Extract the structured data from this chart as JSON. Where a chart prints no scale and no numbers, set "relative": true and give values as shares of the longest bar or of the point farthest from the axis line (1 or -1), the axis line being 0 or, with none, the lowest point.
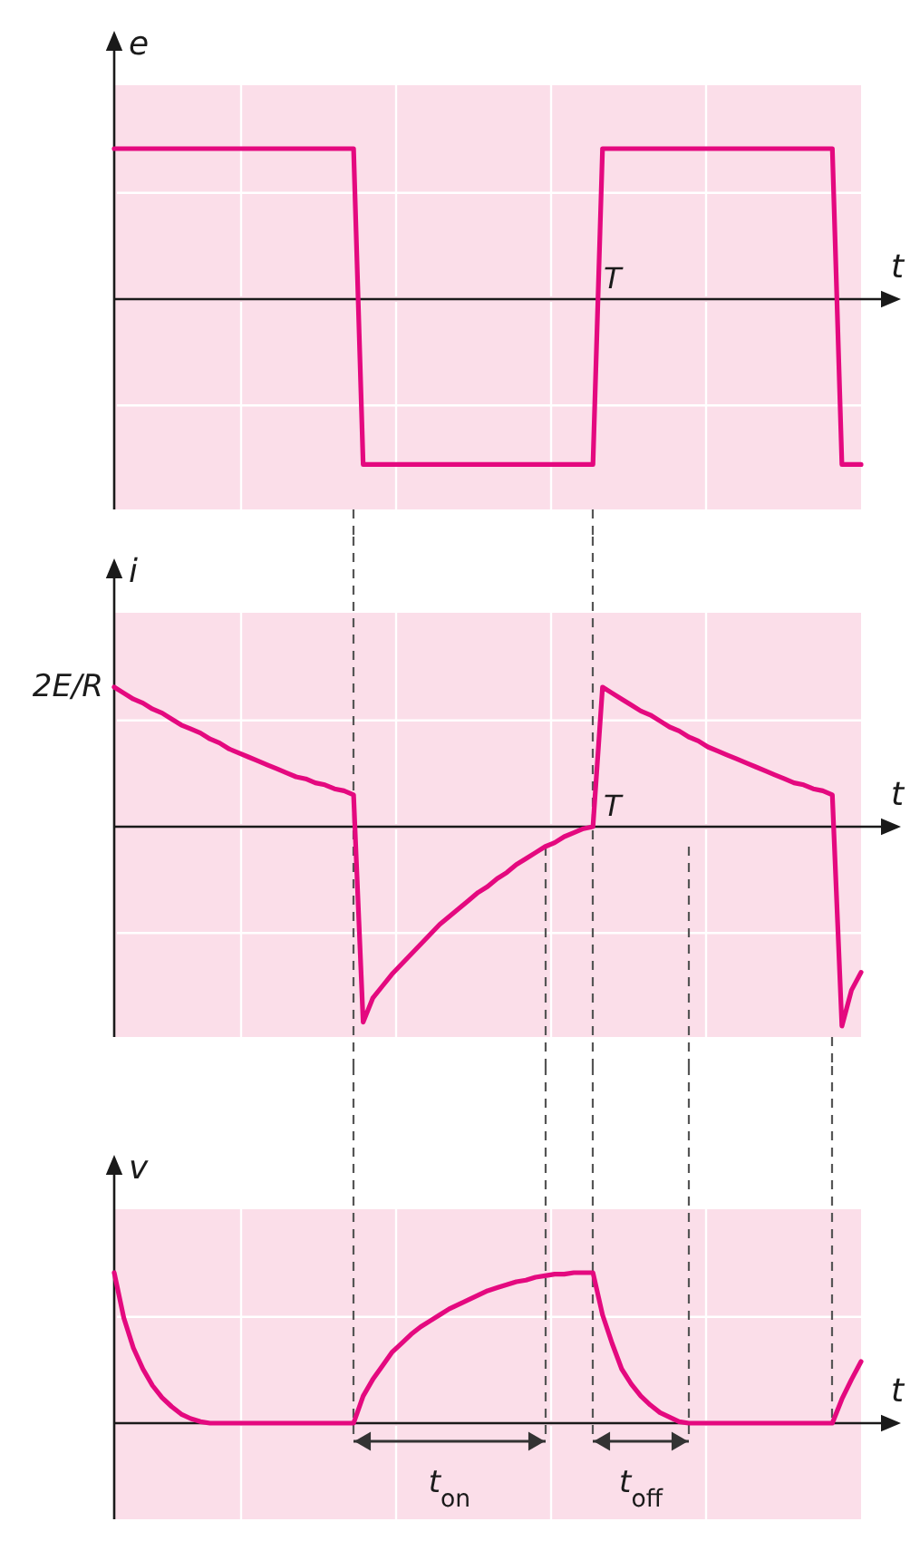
{
  "chart_data": [
    {
      "type": "line",
      "relative": true,
      "ylabel": "e",
      "xlabel": "t",
      "grid": true,
      "categories": [
        null,
        null,
        null,
        null,
        null,
        null,
        null,
        null,
        null,
        null,
        null,
        null,
        null,
        null,
        null,
        null,
        null,
        null,
        null,
        null,
        null,
        null,
        null,
        null,
        null,
        null,
        null,
        null,
        null,
        null,
        null,
        null,
        null,
        null,
        null,
        null,
        null,
        null,
        null,
        null,
        null,
        null,
        null,
        null,
        null,
        null,
        null,
        null,
        null,
        null,
        null,
        null,
        null,
        null,
        null,
        null,
        null,
        null,
        null,
        null,
        null,
        null,
        null,
        null,
        null,
        null,
        null,
        null,
        null,
        null,
        null,
        null,
        null,
        null,
        null,
        null,
        null,
        null,
        null
      ],
      "series": [
        {
          "color": "#e4097f",
          "values": [
            0.91,
            0.91,
            0.91,
            0.91,
            0.91,
            0.91,
            0.91,
            0.91,
            0.91,
            0.91,
            0.91,
            0.91,
            0.91,
            0.91,
            0.91,
            0.91,
            0.91,
            0.91,
            0.91,
            0.91,
            0.91,
            0.91,
            0.91,
            0.91,
            0.91,
            0.91,
            -1,
            -1,
            -1,
            -1,
            -1,
            -1,
            -1,
            -1,
            -1,
            -1,
            -1,
            -1,
            -1,
            -1,
            -1,
            -1,
            -1,
            -1,
            -1,
            -1,
            -1,
            -1,
            -1,
            -1,
            -1,
            0.91,
            0.91,
            0.91,
            0.91,
            0.91,
            0.91,
            0.91,
            0.91,
            0.91,
            0.91,
            0.91,
            0.91,
            0.91,
            0.91,
            0.91,
            0.91,
            0.91,
            0.91,
            0.91,
            0.91,
            0.91,
            0.91,
            0.91,
            0.91,
            0.91,
            -1,
            -1,
            -1
          ]
        }
      ],
      "annotations": [
        "T"
      ]
    },
    {
      "type": "line",
      "relative": true,
      "ylabel": "i",
      "xlabel": "t",
      "grid": true,
      "categories": [
        null,
        null,
        null,
        null,
        null,
        null,
        null,
        null,
        null,
        null,
        null,
        null,
        null,
        null,
        null,
        null,
        null,
        null,
        null,
        null,
        null,
        null,
        null,
        null,
        null,
        null,
        null,
        null,
        null,
        null,
        null,
        null,
        null,
        null,
        null,
        null,
        null,
        null,
        null,
        null,
        null,
        null,
        null,
        null,
        null,
        null,
        null,
        null,
        null,
        null,
        null,
        null,
        null,
        null,
        null,
        null,
        null,
        null,
        null,
        null,
        null,
        null,
        null,
        null,
        null,
        null,
        null,
        null,
        null,
        null,
        null,
        null,
        null,
        null,
        null,
        null,
        null,
        null,
        null
      ],
      "series": [
        {
          "color": "#e4097f",
          "values": [
            0.7,
            0.67,
            0.64,
            0.62,
            0.59,
            0.57,
            0.54,
            0.51,
            0.49,
            0.47,
            0.44,
            0.42,
            0.39,
            0.37,
            0.35,
            0.33,
            0.31,
            0.29,
            0.27,
            0.25,
            0.24,
            0.22,
            0.21,
            0.19,
            0.18,
            0.16,
            -0.98,
            -0.86,
            -0.8,
            -0.74,
            -0.69,
            -0.64,
            -0.59,
            -0.54,
            -0.49,
            -0.45,
            -0.41,
            -0.37,
            -0.33,
            -0.3,
            -0.26,
            -0.23,
            -0.19,
            -0.16,
            -0.13,
            -0.1,
            -0.08,
            -0.05,
            -0.03,
            -0.01,
            0,
            0.7,
            0.67,
            0.64,
            0.61,
            0.58,
            0.56,
            0.53,
            0.5,
            0.48,
            0.45,
            0.43,
            0.4,
            0.38,
            0.36,
            0.34,
            0.32,
            0.3,
            0.28,
            0.26,
            0.24,
            0.22,
            0.21,
            0.19,
            0.18,
            0.16,
            -1,
            -0.82,
            -0.73
          ]
        }
      ],
      "annotations": [
        "2E/R",
        "T"
      ]
    },
    {
      "type": "line",
      "relative": true,
      "ylabel": "v",
      "xlabel": "t",
      "grid": true,
      "categories": [
        null,
        null,
        null,
        null,
        null,
        null,
        null,
        null,
        null,
        null,
        null,
        null,
        null,
        null,
        null,
        null,
        null,
        null,
        null,
        null,
        null,
        null,
        null,
        null,
        null,
        null,
        null,
        null,
        null,
        null,
        null,
        null,
        null,
        null,
        null,
        null,
        null,
        null,
        null,
        null,
        null,
        null,
        null,
        null,
        null,
        null,
        null,
        null,
        null,
        null,
        null,
        null,
        null,
        null,
        null,
        null,
        null,
        null,
        null,
        null,
        null,
        null,
        null,
        null,
        null,
        null,
        null,
        null,
        null,
        null,
        null,
        null,
        null,
        null,
        null,
        null,
        null,
        null,
        null
      ],
      "series": [
        {
          "color": "#e4097f",
          "values": [
            1,
            0.7,
            0.5,
            0.36,
            0.25,
            0.17,
            0.11,
            0.06,
            0.03,
            0.01,
            0,
            0,
            0,
            0,
            0,
            0,
            0,
            0,
            0,
            0,
            0,
            0,
            0,
            0,
            0,
            0,
            0.18,
            0.29,
            0.38,
            0.47,
            0.53,
            0.59,
            0.64,
            0.68,
            0.72,
            0.76,
            0.79,
            0.82,
            0.85,
            0.88,
            0.9,
            0.92,
            0.94,
            0.95,
            0.97,
            0.98,
            0.99,
            0.99,
            1,
            1,
            1,
            0.72,
            0.53,
            0.36,
            0.26,
            0.18,
            0.12,
            0.07,
            0.04,
            0.01,
            0,
            0,
            0,
            0,
            0,
            0,
            0,
            0,
            0,
            0,
            0,
            0,
            0,
            0,
            0,
            0,
            0.16,
            0.29,
            0.41
          ]
        }
      ],
      "annotations": [
        "t$_{on}$",
        "t$_{off}$"
      ]
    }
  ]
}
